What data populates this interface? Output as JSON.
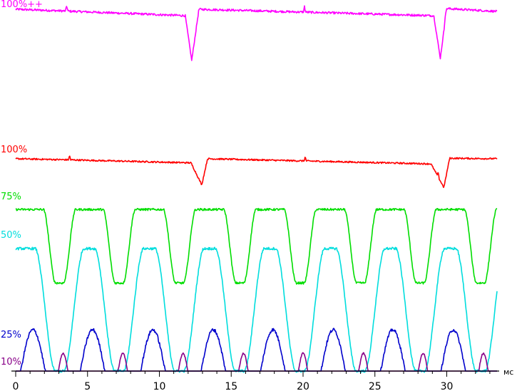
{
  "chart_data": {
    "type": "line",
    "xlabel": "",
    "x_unit": "мс",
    "xlim": [
      0,
      33.5
    ],
    "x_ticks": [
      0,
      5,
      10,
      15,
      20,
      25,
      30
    ],
    "grid": false,
    "legend": "none",
    "series": [
      {
        "name": "100%++",
        "color": "#ff00ff",
        "style": "sawtooth_with_dips",
        "x": [
          0,
          2.8,
          11.8,
          12.25,
          12.75,
          29.1,
          29.55,
          30.0,
          33.5
        ],
        "y": [
          97,
          95,
          88,
          25,
          97,
          88,
          28,
          98,
          94
        ],
        "spikes": [
          3.55,
          20.1,
          29.9
        ]
      },
      {
        "name": "100%",
        "color": "#ff0000",
        "style": "sawtooth_with_dips",
        "x": [
          0,
          3.5,
          12.2,
          12.95,
          13.35,
          28.9,
          29.8,
          30.2,
          33.5
        ],
        "y": [
          96,
          94,
          88,
          45,
          96,
          86,
          40,
          97,
          96
        ],
        "spikes": [
          3.75,
          20.15,
          29.4
        ]
      },
      {
        "name": "75%",
        "color": "#00dd00",
        "style": "periodic_dips",
        "period": 4.18,
        "dip_centers": [
          3.05,
          7.2,
          11.4,
          15.6,
          19.8,
          24.0,
          28.15,
          32.35
        ],
        "high": 96,
        "low": 29,
        "dip_width": 0.55,
        "transition_width": 0.85
      },
      {
        "name": "50%",
        "color": "#00dddd",
        "style": "periodic_dips",
        "period": 4.18,
        "dip_centers": [
          3.05,
          7.2,
          11.4,
          15.6,
          19.8,
          24.0,
          28.15,
          32.35
        ],
        "high": 95,
        "low": 0,
        "dip_width": 0.6,
        "transition_width": 1.4
      },
      {
        "name": "25%",
        "color": "#0000cc",
        "style": "periodic_pulses",
        "pulse_centers": [
          1.2,
          5.35,
          9.55,
          13.75,
          17.9,
          22.1,
          26.25,
          30.45
        ],
        "pulse_width": 1.7,
        "peak": 100
      },
      {
        "name": "10%",
        "color": "#880088",
        "style": "periodic_pulses",
        "pulse_centers": [
          3.3,
          7.45,
          11.65,
          15.85,
          20.0,
          24.2,
          28.35,
          32.55
        ],
        "pulse_width": 0.65,
        "peak": 100
      }
    ]
  }
}
